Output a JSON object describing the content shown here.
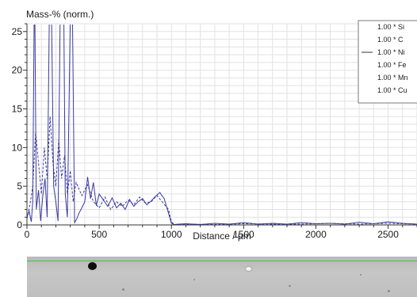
{
  "chart_data": {
    "type": "line",
    "title": "",
    "xlabel": "Distance / µm",
    "ylabel": "Mass-% (norm.)",
    "xlim": [
      0,
      2700
    ],
    "ylim": [
      0,
      26
    ],
    "x_ticks": [
      0,
      500,
      1000,
      1500,
      2000,
      2500
    ],
    "y_ticks": [
      0,
      5,
      10,
      15,
      20,
      25
    ],
    "grid": true,
    "legend_position": "top-right",
    "legend": [
      {
        "label": "1.00 * Si",
        "marker": false
      },
      {
        "label": "1.00 * C",
        "marker": false
      },
      {
        "label": "1.00 * Ni",
        "marker": true
      },
      {
        "label": "1.00 * Fe",
        "marker": false
      },
      {
        "label": "1.00 * Mn",
        "marker": false
      },
      {
        "label": "1.00 * Cu",
        "marker": false
      }
    ],
    "series": [
      {
        "name": "1.00 * Ni",
        "color": "#3a3aa0",
        "x": [
          0,
          15,
          30,
          40,
          50,
          55,
          65,
          80,
          95,
          110,
          125,
          140,
          155,
          170,
          185,
          200,
          215,
          230,
          245,
          255,
          265,
          280,
          300,
          315,
          330,
          345,
          360,
          380,
          400,
          420,
          440,
          460,
          480,
          500,
          530,
          560,
          590,
          620,
          650,
          680,
          710,
          740,
          770,
          800,
          830,
          860,
          890,
          920,
          950,
          980,
          1000,
          1020,
          1050,
          1100,
          1200,
          1300,
          1400,
          1500,
          1600,
          1700,
          1800,
          1900,
          2000,
          2100,
          2200,
          2300,
          2400,
          2500,
          2600,
          2700
        ],
        "values": [
          1.0,
          1.8,
          0.4,
          3.0,
          27,
          27,
          2.0,
          4.5,
          0.5,
          3.8,
          6.0,
          1.0,
          27,
          27,
          5.0,
          3.0,
          0.5,
          27,
          27,
          27,
          4.0,
          1.0,
          27,
          27,
          0.3,
          0.8,
          1.5,
          2.2,
          3.0,
          6.2,
          3.4,
          5.5,
          2.5,
          4.0,
          3.2,
          2.4,
          3.5,
          2.2,
          2.8,
          2.0,
          3.3,
          2.4,
          3.0,
          3.4,
          2.6,
          3.1,
          3.7,
          4.2,
          3.4,
          1.5,
          0.2,
          0.05,
          0.1,
          0.15,
          0.05,
          0.2,
          0.1,
          0.3,
          0.1,
          0.2,
          0.1,
          0.3,
          0.15,
          0.2,
          0.1,
          0.35,
          0.15,
          0.4,
          0.2,
          0.1
        ]
      },
      {
        "name": "1.00 * Fe",
        "color": "#3a3aa0",
        "dashed": true,
        "x": [
          0,
          20,
          40,
          60,
          80,
          100,
          120,
          140,
          160,
          180,
          200,
          220,
          240,
          260,
          280,
          300,
          320,
          340,
          380,
          420,
          460,
          500,
          540,
          580,
          620,
          660,
          700,
          740,
          780,
          820,
          860,
          900,
          940,
          980,
          1000,
          1020,
          1100,
          1300,
          1500,
          1700,
          1900,
          2100,
          2300,
          2500,
          2700
        ],
        "values": [
          0.8,
          2.5,
          5.0,
          12,
          8,
          4,
          10,
          6,
          14,
          8,
          5,
          11,
          6,
          9,
          4,
          7,
          3,
          5.5,
          3.8,
          5.2,
          3.0,
          2.2,
          3.6,
          2.0,
          3.0,
          2.4,
          3.2,
          2.6,
          3.6,
          2.8,
          3.0,
          3.8,
          2.9,
          2.0,
          0.4,
          0.05,
          0.1,
          0.05,
          0.15,
          0.1,
          0.1,
          0.2,
          0.1,
          0.2,
          0.1
        ]
      }
    ]
  },
  "micrograph": {
    "label": "SEM micrograph strip"
  }
}
